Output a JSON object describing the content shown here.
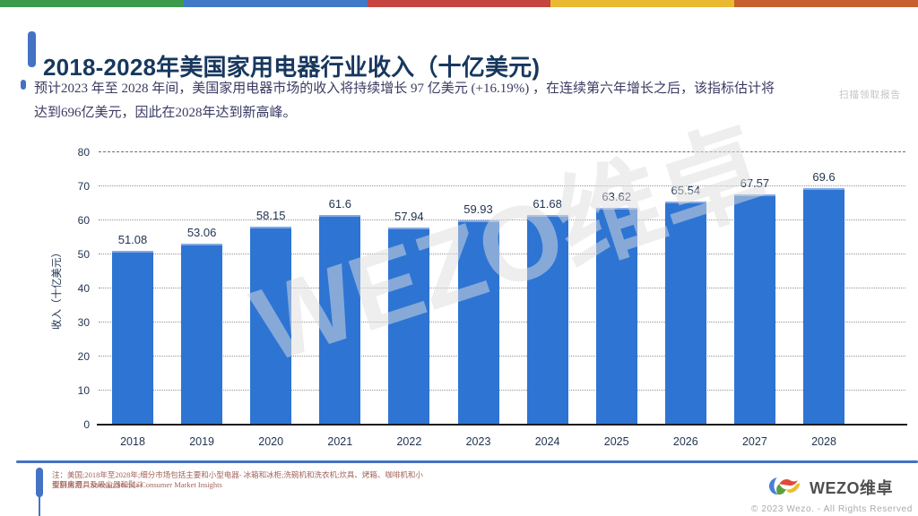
{
  "top_stripe_colors": [
    "#3d9a4a",
    "#4079c7",
    "#c54540",
    "#e9b931",
    "#c6602f"
  ],
  "header": {
    "title": "2018-2028年美国家用电器行业收入（十亿美元)"
  },
  "summary": {
    "lines": [
      "预计2023 年至 2028 年间，美国家用电器市场的收入将持续增长 97 亿美元 (+16.19%) ，在连续第六年增长之后，该指标估计将",
      "达到696亿美元，因此在2028年达到新高峰。"
    ]
  },
  "scan_hint": "扫描领取报告",
  "chart_data": {
    "type": "bar",
    "title": "2018-2028年美国家用电器行业收入（十亿美元)",
    "categories": [
      "2018",
      "2019",
      "2020",
      "2021",
      "2022",
      "2023",
      "2024",
      "2025",
      "2026",
      "2027",
      "2028"
    ],
    "values": [
      51.08,
      53.06,
      58.15,
      61.6,
      57.94,
      59.93,
      61.68,
      63.62,
      65.54,
      67.57,
      69.6
    ],
    "xlabel": "",
    "ylabel": "收入（十亿美元）",
    "ylim": [
      0,
      80
    ],
    "yticks": [
      0,
      10,
      20,
      30,
      40,
      50,
      60,
      70,
      80
    ],
    "grid": "dotted-horizontal",
    "legend": "none",
    "bar_color": "#2e74d3",
    "watermark": "WEZO维卓"
  },
  "footer": {
    "note_line1": "注：美国;2018年至2028年;细分市场包括主要和小型电器- 冰箱和冰柜;洗碗机和洗衣机;炊具、烤箱、咖啡机和小型厨房用具及吸尘器和熨斗",
    "note_line2": "资料来源：Statista; Statista Consumer Market Insights",
    "brand_name": "WEZO维卓",
    "copyright": "© 2023 Wezo. - All Rights Reserved"
  }
}
